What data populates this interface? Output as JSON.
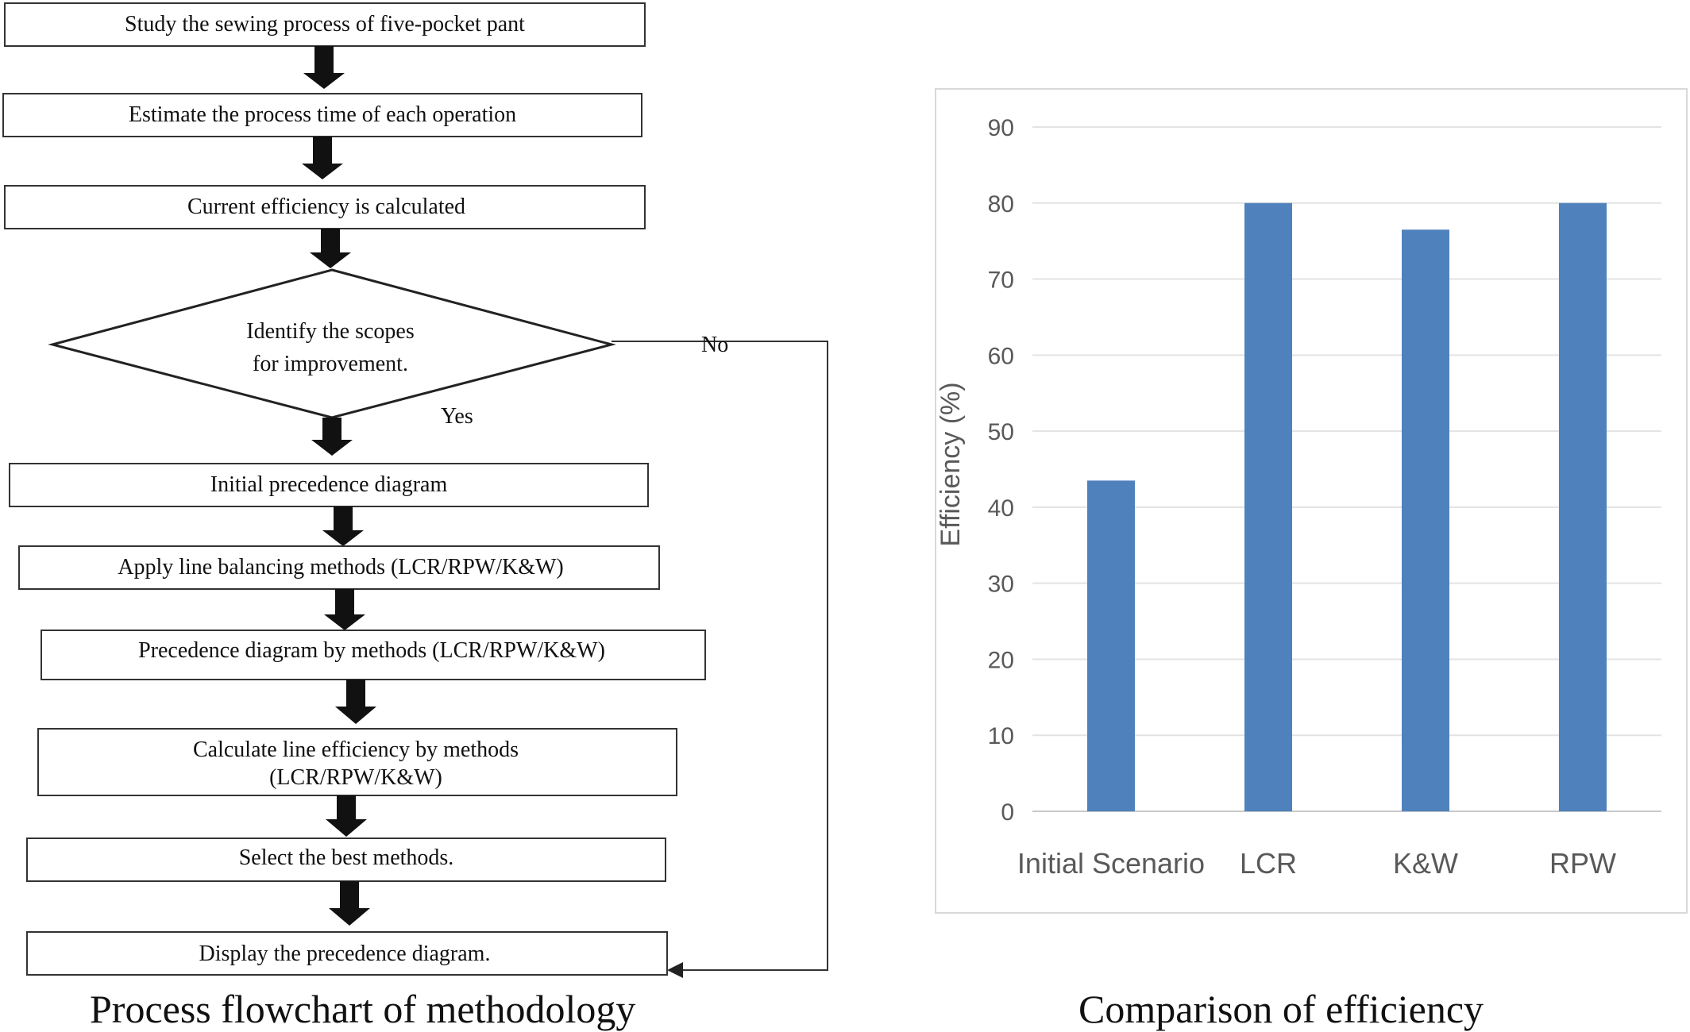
{
  "flowchart": {
    "steps": [
      "Study the sewing process of five-pocket pant",
      "Estimate the process time of each operation",
      "Current efficiency is calculated",
      "Initial precedence diagram",
      "Apply line balancing methods (LCR/RPW/K&W)",
      "Precedence diagram by methods (LCR/RPW/K&W)",
      "Calculate line efficiency by methods",
      "(LCR/RPW/K&W)",
      "Select the best methods.",
      "Display the precedence diagram."
    ],
    "decision": {
      "line1": "Identify the scopes",
      "line2": "for improvement.",
      "no_label": "No",
      "yes_label": "Yes"
    },
    "caption": "Process flowchart of methodology"
  },
  "chart_caption": "Comparison of efficiency",
  "chart_data": {
    "type": "bar",
    "categories": [
      "Initial Scenario",
      "LCR",
      "K&W",
      "RPW"
    ],
    "values": [
      43.5,
      80,
      76.5,
      80
    ],
    "title": "",
    "xlabel": "",
    "ylabel": "Efficiency (%)",
    "ylim": [
      0,
      90
    ],
    "yticks": [
      0,
      10,
      20,
      30,
      40,
      50,
      60,
      70,
      80,
      90
    ],
    "grid": true,
    "bar_color": "#4f81bd"
  }
}
